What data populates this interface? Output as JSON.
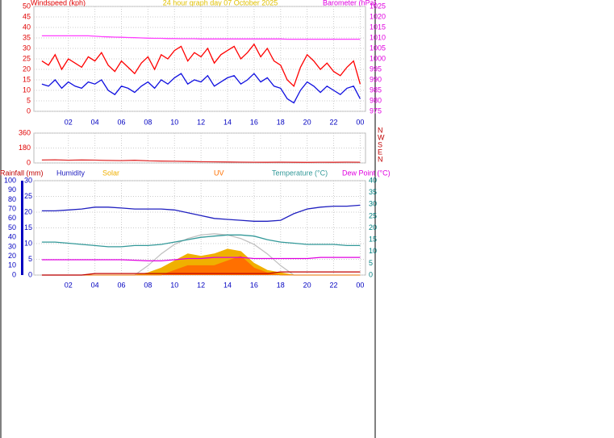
{
  "chart_data": [
    {
      "type": "line",
      "title": "24 hour graph day 07 October 2025",
      "ylabel": "Windspeed (kph)",
      "y2label": "Barometer (hPa)",
      "x": [
        0,
        0.5,
        1,
        1.5,
        2,
        2.5,
        3,
        3.5,
        4,
        4.5,
        5,
        5.5,
        6,
        6.5,
        7,
        7.5,
        8,
        8.5,
        9,
        9.5,
        10,
        10.5,
        11,
        11.5,
        12,
        12.5,
        13,
        13.5,
        14,
        14.5,
        15,
        15.5,
        16,
        16.5,
        17,
        17.5,
        18,
        18.5,
        19,
        19.5,
        20,
        20.5,
        21,
        21.5,
        22,
        22.5,
        23,
        23.5,
        24
      ],
      "xlim": [
        -0.6,
        24.4
      ],
      "xticks": [
        {
          "value": 2,
          "label": "02"
        },
        {
          "value": 4,
          "label": "04"
        },
        {
          "value": 6,
          "label": "06"
        },
        {
          "value": 8,
          "label": "08"
        },
        10,
        12,
        14,
        16,
        18,
        20,
        22,
        {
          "value": 24,
          "label": "00"
        }
      ],
      "xcolor": "#0000c0",
      "ylim": [
        0,
        50
      ],
      "yticks": [
        0,
        5,
        10,
        15,
        20,
        25,
        30,
        35,
        40,
        45,
        50
      ],
      "ycolor": "#e00000",
      "y2lim": [
        975,
        1025
      ],
      "y2ticks": [
        975,
        980,
        985,
        990,
        995,
        1000,
        1005,
        1010,
        1015,
        1020,
        1025
      ],
      "y2color": "#e000e0",
      "grid": true,
      "series": [
        {
          "color": "#ff0000",
          "values": [
            24,
            22,
            27,
            20,
            25,
            23,
            21,
            26,
            24,
            28,
            22,
            19,
            24,
            21,
            18,
            23,
            26,
            20,
            27,
            25,
            29,
            31,
            24,
            28,
            26,
            30,
            23,
            27,
            29,
            31,
            25,
            28,
            32,
            26,
            30,
            24,
            22,
            15,
            12,
            21,
            27,
            24,
            20,
            23,
            19,
            17,
            21,
            24,
            13
          ]
        },
        {
          "color": "#1010e0",
          "values": [
            13,
            12,
            15,
            11,
            14,
            12,
            11,
            14,
            13,
            15,
            10,
            8,
            12,
            11,
            9,
            12,
            14,
            11,
            15,
            13,
            16,
            18,
            13,
            15,
            14,
            17,
            12,
            14,
            16,
            17,
            13,
            15,
            18,
            14,
            16,
            12,
            11,
            6,
            4,
            10,
            14,
            12,
            9,
            12,
            10,
            8,
            11,
            12,
            6
          ]
        },
        {
          "color": "#ff40ff",
          "axis": "y2",
          "values": [
            1011,
            1011,
            1011,
            1011,
            1011,
            1011,
            1011,
            1011,
            1010.8,
            1010.6,
            1010.5,
            1010.4,
            1010.3,
            1010.2,
            1010.1,
            1010,
            1009.9,
            1009.8,
            1009.8,
            1009.7,
            1009.7,
            1009.6,
            1009.6,
            1009.6,
            1009.5,
            1009.5,
            1009.5,
            1009.5,
            1009.5,
            1009.5,
            1009.5,
            1009.5,
            1009.5,
            1009.5,
            1009.5,
            1009.5,
            1009.5,
            1009.4,
            1009.4,
            1009.4,
            1009.4,
            1009.4,
            1009.4,
            1009.4,
            1009.4,
            1009.4,
            1009.4,
            1009.4,
            1009.4
          ]
        }
      ]
    },
    {
      "type": "line",
      "x": [
        0,
        1,
        2,
        3,
        4,
        5,
        6,
        7,
        8,
        9,
        10,
        11,
        12,
        13,
        14,
        15,
        16,
        17,
        18,
        19,
        20,
        21,
        22,
        23,
        24
      ],
      "xlim": [
        -0.6,
        24.4
      ],
      "ylim": [
        0,
        360
      ],
      "yticks": [
        0,
        180,
        360
      ],
      "ycolor": "#e00000",
      "grid": true,
      "direction_labels": [
        "N",
        "W",
        "S",
        "E",
        "N"
      ],
      "series": [
        {
          "color": "#e03030",
          "values": [
            35,
            38,
            33,
            36,
            34,
            30,
            28,
            32,
            25,
            22,
            20,
            18,
            15,
            14,
            12,
            10,
            9,
            8,
            10,
            8,
            7,
            9,
            8,
            10,
            9
          ]
        }
      ]
    },
    {
      "type": "line",
      "x": [
        0,
        1,
        2,
        3,
        4,
        5,
        6,
        7,
        8,
        9,
        10,
        11,
        12,
        13,
        14,
        15,
        16,
        17,
        18,
        19,
        20,
        21,
        22,
        23,
        24
      ],
      "xlim": [
        -0.6,
        24.4
      ],
      "xticks": [
        {
          "value": 2,
          "label": "02"
        },
        {
          "value": 4,
          "label": "04"
        },
        {
          "value": 6,
          "label": "06"
        },
        {
          "value": 8,
          "label": "08"
        },
        10,
        12,
        14,
        16,
        18,
        20,
        22,
        {
          "value": 24,
          "label": "00"
        }
      ],
      "xcolor": "#0000c0",
      "ylim": [
        0,
        100
      ],
      "yticks": [
        0,
        10,
        20,
        30,
        40,
        50,
        60,
        70,
        80,
        90,
        100
      ],
      "ycolor": "#0000c0",
      "y3lim": [
        0,
        30
      ],
      "y3ticks": [
        0,
        5,
        10,
        15,
        20,
        25,
        30
      ],
      "y3color": "#0000c0",
      "y2lim": [
        0,
        40
      ],
      "y2ticks": [
        0,
        5,
        10,
        15,
        20,
        25,
        30,
        35,
        40
      ],
      "y2color": "#008080",
      "grid": true,
      "series": [
        {
          "color": "#c0c0c0",
          "axis": "y2",
          "values": [
            0,
            0,
            0,
            0,
            0,
            0,
            0,
            0,
            4,
            9,
            13,
            15.5,
            17,
            17.5,
            17,
            15.5,
            13,
            9,
            4,
            0,
            0,
            0,
            0,
            0,
            0
          ]
        },
        {
          "name": "Solar",
          "color": "#f0b000",
          "axis": "y2",
          "area": true,
          "values": [
            0,
            0,
            0,
            0,
            0,
            0,
            0,
            0,
            1,
            3,
            6,
            9,
            8,
            9,
            11,
            10,
            5,
            2,
            1,
            0,
            0,
            0,
            0,
            0,
            0
          ]
        },
        {
          "name": "UV",
          "color": "#ff7000",
          "axis": "y2",
          "area": true,
          "values": [
            0,
            0,
            0,
            0,
            0,
            0,
            0,
            0,
            0,
            0,
            2,
            4,
            4,
            4,
            6,
            8,
            3,
            1,
            0,
            0,
            0,
            0,
            0,
            0,
            0
          ]
        },
        {
          "name": "Rainfall (mm)",
          "color": "#c00000",
          "axis": "y3",
          "values": [
            0,
            0,
            0,
            0,
            0.5,
            0.5,
            0.5,
            0.5,
            0.5,
            0.5,
            0.5,
            0.5,
            0.5,
            0.5,
            0.5,
            0.5,
            0.5,
            0.5,
            1,
            1,
            1,
            1,
            1,
            1,
            1
          ]
        },
        {
          "name": "Humidity",
          "color": "#2020c0",
          "values": [
            68,
            68,
            69,
            70,
            72,
            72,
            71,
            70,
            70,
            70,
            69,
            66,
            63,
            60,
            59,
            58,
            57,
            57,
            58,
            65,
            70,
            72,
            73,
            73,
            74
          ]
        },
        {
          "name": "Temperature (°C)",
          "color": "#339999",
          "axis": "y2",
          "values": [
            14,
            14,
            13.5,
            13,
            12.5,
            12,
            12,
            12.5,
            12.5,
            13,
            14,
            15,
            16,
            16.5,
            17,
            17,
            16.5,
            15,
            14,
            13.5,
            13,
            13,
            13,
            12.5,
            12.5
          ]
        },
        {
          "name": "Dew Point (°C)",
          "color": "#e000e0",
          "axis": "y2",
          "values": [
            6.5,
            6.5,
            6.5,
            6.5,
            6.5,
            6.5,
            6.5,
            6.3,
            6,
            6,
            6.5,
            7,
            7,
            7.5,
            7.5,
            7.5,
            7,
            7,
            7,
            7,
            7,
            7.5,
            7.5,
            7.5,
            7.5
          ]
        }
      ]
    }
  ]
}
